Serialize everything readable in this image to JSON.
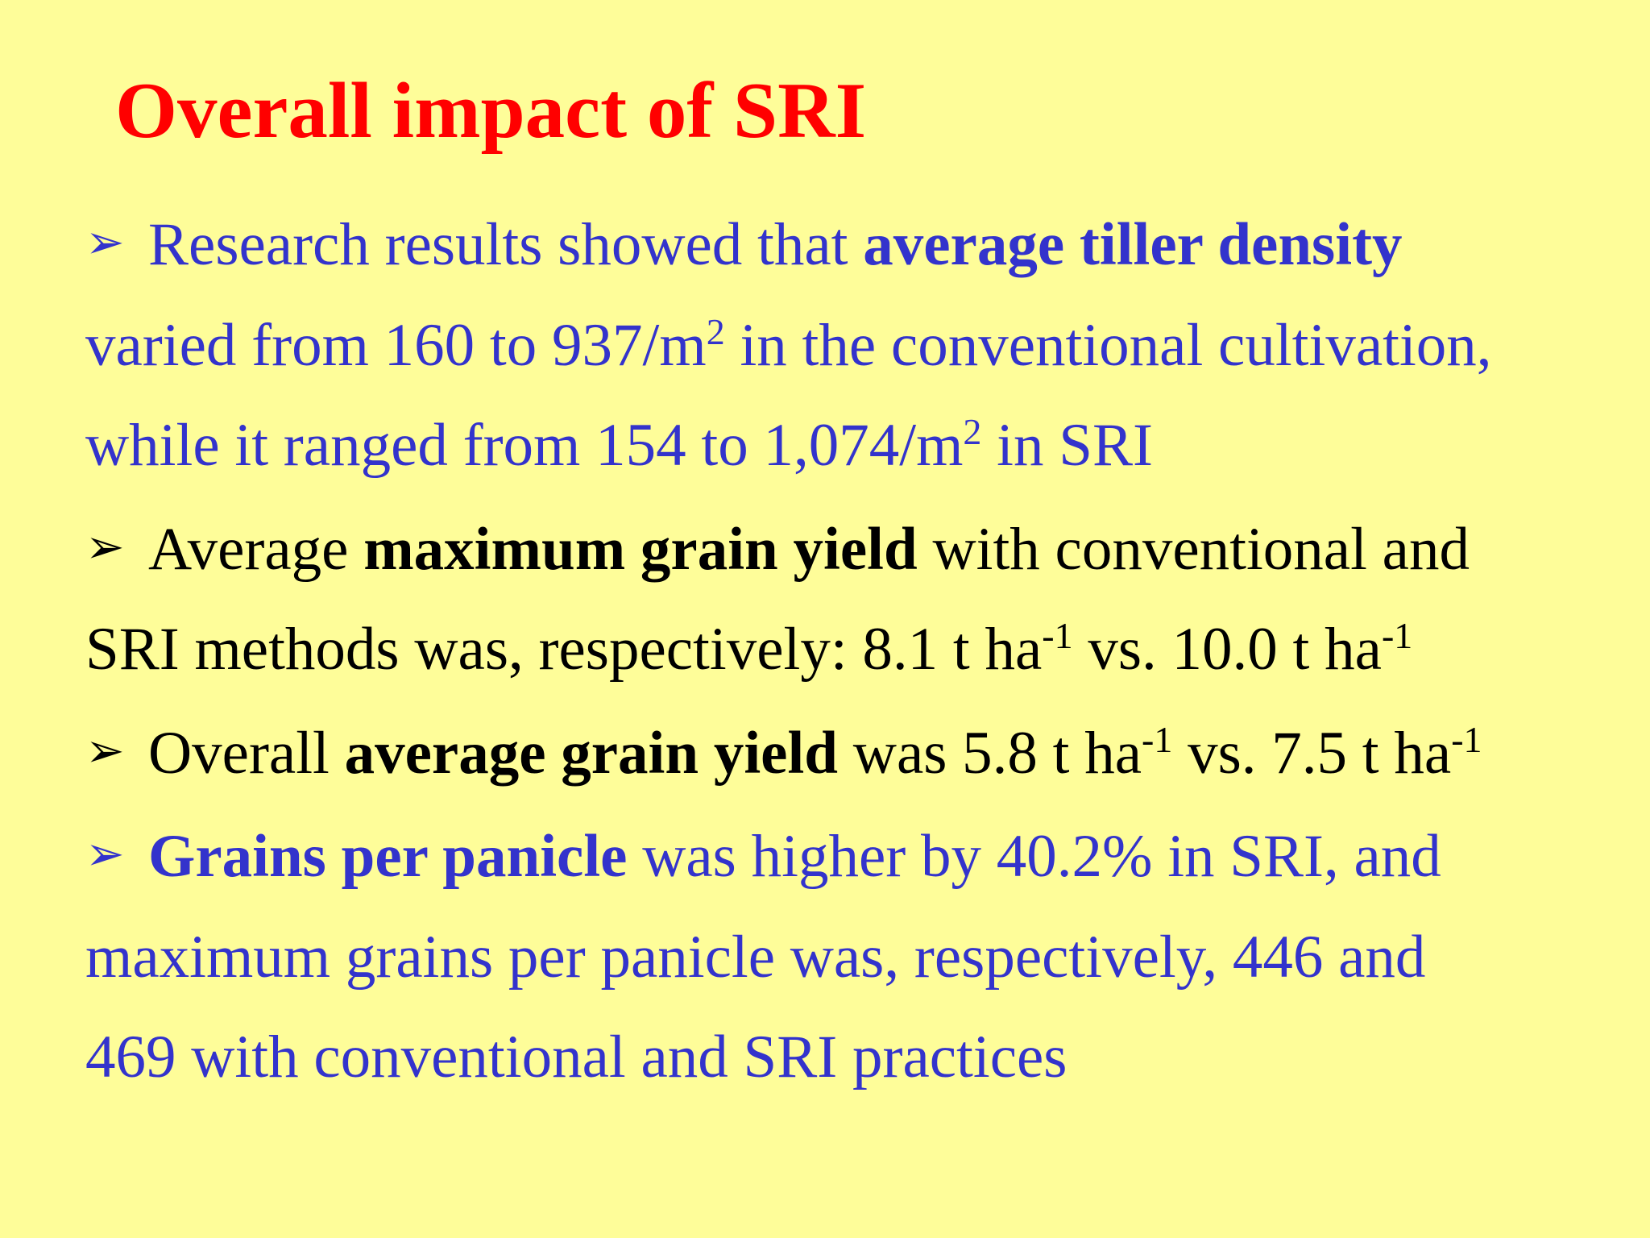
{
  "slide": {
    "title": "Overall impact of SRI",
    "bullet_glyph": "➢",
    "colors": {
      "background": "#fefd99",
      "title": "#ff0000",
      "blue_text": "#3333cc",
      "black_text": "#000000"
    },
    "bullets": [
      {
        "color": "blue",
        "intro": "Research results showed that ",
        "bold": "average tiller density",
        "line2_a": "varied from 160 to 937/m",
        "line2_sup": "2",
        "line2_b": " in the conventional cultivation,",
        "line3_a": "while it ranged from 154 to 1,074/m",
        "line3_sup": "2",
        "line3_b": " in SRI"
      },
      {
        "color": "black",
        "intro": "Average ",
        "bold": "maximum grain yield",
        "after_bold": " with conventional and",
        "line2_a": "SRI methods was, respectively: 8.1 t ha",
        "line2_sup1": "-1",
        "line2_b": " vs. 10.0 t ha",
        "line2_sup2": "-1"
      },
      {
        "color": "black",
        "intro": "Overall ",
        "bold": "average grain yield",
        "after_bold": " was 5.8 t ha",
        "sup1": "-1",
        "mid": " vs. 7.5 t ha",
        "sup2": "-1"
      },
      {
        "color": "blue",
        "bold": "Grains per panicle",
        "after_bold": " was higher by 40.2% in SRI, and",
        "line2": "maximum grains per panicle was, respectively, 446 and",
        "line3": "469 with conventional and SRI practices"
      }
    ]
  }
}
